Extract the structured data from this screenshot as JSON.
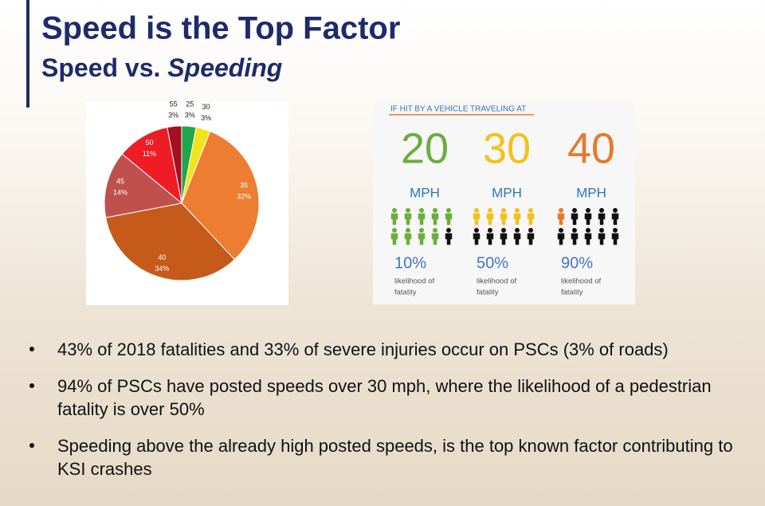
{
  "header": {
    "title": "Speed is the Top Factor",
    "subtitle": "Speed vs.",
    "subtitle_emphasis": "Speeding"
  },
  "chart_data": {
    "type": "pie",
    "categories": [
      "25",
      "30",
      "35",
      "40",
      "45",
      "50",
      "55"
    ],
    "values": [
      3,
      3,
      32,
      34,
      14,
      11,
      3
    ],
    "value_labels": [
      "3%",
      "3%",
      "32%",
      "34%",
      "14%",
      "11%",
      "3%"
    ],
    "colors": [
      "#1fa64a",
      "#f2e41c",
      "#ed7d31",
      "#c55a1a",
      "#c0504d",
      "#ee1c25",
      "#a50f21"
    ]
  },
  "infographic": {
    "heading": "IF HIT BY A VEHICLE TRAVELING AT",
    "columns": [
      {
        "speed": "20",
        "unit": "MPH",
        "value": 10,
        "value_label": "10%",
        "caption": "likelihood of",
        "caption2": "fatality",
        "color": "#6aae3e"
      },
      {
        "speed": "30",
        "unit": "MPH",
        "value": 50,
        "value_label": "50%",
        "caption": "likelihood of",
        "caption2": "fatality",
        "color": "#f3c11d"
      },
      {
        "speed": "40",
        "unit": "MPH",
        "value": 90,
        "value_label": "90%",
        "caption": "likelihood of",
        "caption2": "fatality",
        "color": "#e8792c"
      }
    ]
  },
  "bullets": [
    "43% of 2018 fatalities and 33% of severe injuries occur on PSCs (3% of roads)",
    "94% of PSCs have posted speeds over 30 mph, where the likelihood of a pedestrian fatality is over 50%",
    "Speeding above the already high posted speeds, is the top known factor contributing to KSI crashes"
  ]
}
